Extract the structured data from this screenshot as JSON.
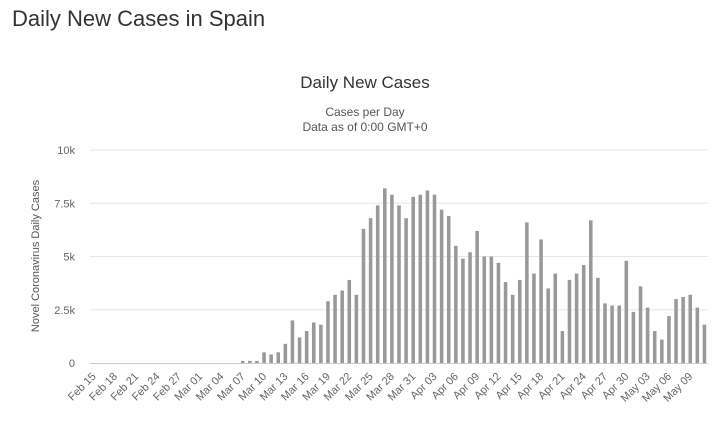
{
  "page": {
    "title": "Daily New Cases in Spain"
  },
  "chart_data": {
    "type": "bar",
    "title": "Daily New Cases",
    "subtitle_lines": [
      "Cases per Day",
      "Data as of 0:00 GMT+0"
    ],
    "ylabel": "Novel Coronavirus Daily Cases",
    "xlabel": "",
    "ylim": [
      0,
      10000
    ],
    "y_ticks": [
      0,
      2500,
      5000,
      7500,
      10000
    ],
    "y_tick_labels": [
      "0",
      "2.5k",
      "5k",
      "7.5k",
      "10k"
    ],
    "grid": true,
    "legend": "none",
    "bar_color": "#999999",
    "categories": [
      "Feb 15",
      "Feb 16",
      "Feb 17",
      "Feb 18",
      "Feb 19",
      "Feb 20",
      "Feb 21",
      "Feb 22",
      "Feb 23",
      "Feb 24",
      "Feb 25",
      "Feb 26",
      "Feb 27",
      "Feb 28",
      "Feb 29",
      "Mar 01",
      "Mar 02",
      "Mar 03",
      "Mar 04",
      "Mar 05",
      "Mar 06",
      "Mar 07",
      "Mar 08",
      "Mar 09",
      "Mar 10",
      "Mar 11",
      "Mar 12",
      "Mar 13",
      "Mar 14",
      "Mar 15",
      "Mar 16",
      "Mar 17",
      "Mar 18",
      "Mar 19",
      "Mar 20",
      "Mar 21",
      "Mar 22",
      "Mar 23",
      "Mar 24",
      "Mar 25",
      "Mar 26",
      "Mar 27",
      "Mar 28",
      "Mar 29",
      "Mar 30",
      "Mar 31",
      "Apr 01",
      "Apr 02",
      "Apr 03",
      "Apr 04",
      "Apr 05",
      "Apr 06",
      "Apr 07",
      "Apr 08",
      "Apr 09",
      "Apr 10",
      "Apr 11",
      "Apr 12",
      "Apr 13",
      "Apr 14",
      "Apr 15",
      "Apr 16",
      "Apr 17",
      "Apr 18",
      "Apr 19",
      "Apr 20",
      "Apr 21",
      "Apr 22",
      "Apr 23",
      "Apr 24",
      "Apr 25",
      "Apr 26",
      "Apr 27",
      "Apr 28",
      "Apr 29",
      "Apr 30",
      "May 01",
      "May 02",
      "May 03",
      "May 04",
      "May 05",
      "May 06",
      "May 07",
      "May 08",
      "May 09",
      "May 10",
      "May 11"
    ],
    "x_tick_labels": [
      "Feb 15",
      "Feb 18",
      "Feb 21",
      "Feb 24",
      "Feb 27",
      "Mar 01",
      "Mar 04",
      "Mar 07",
      "Mar 10",
      "Mar 13",
      "Mar 16",
      "Mar 19",
      "Mar 22",
      "Mar 25",
      "Mar 28",
      "Mar 31",
      "Apr 03",
      "Apr 06",
      "Apr 09",
      "Apr 12",
      "Apr 15",
      "Apr 18",
      "Apr 21",
      "Apr 24",
      "Apr 27",
      "Apr 30",
      "May 03",
      "May 06",
      "May 09"
    ],
    "values": [
      0,
      0,
      0,
      0,
      0,
      0,
      0,
      0,
      0,
      0,
      0,
      0,
      0,
      0,
      0,
      0,
      0,
      0,
      0,
      0,
      0,
      100,
      100,
      100,
      500,
      400,
      500,
      900,
      2000,
      1200,
      1500,
      1900,
      1800,
      2900,
      3200,
      3400,
      3900,
      3200,
      6300,
      6800,
      7400,
      8200,
      7900,
      7400,
      6800,
      7800,
      7900,
      8100,
      7900,
      7200,
      6900,
      5500,
      4900,
      5200,
      6200,
      5000,
      5000,
      4700,
      3800,
      3200,
      3900,
      6600,
      4200,
      5800,
      3500,
      4200,
      1500,
      3900,
      4200,
      4600,
      6700,
      4000,
      2800,
      2700,
      2700,
      4800,
      2400,
      3600,
      2600,
      1500,
      1100,
      2200,
      3000,
      3100,
      3200,
      2600,
      1800
    ]
  }
}
